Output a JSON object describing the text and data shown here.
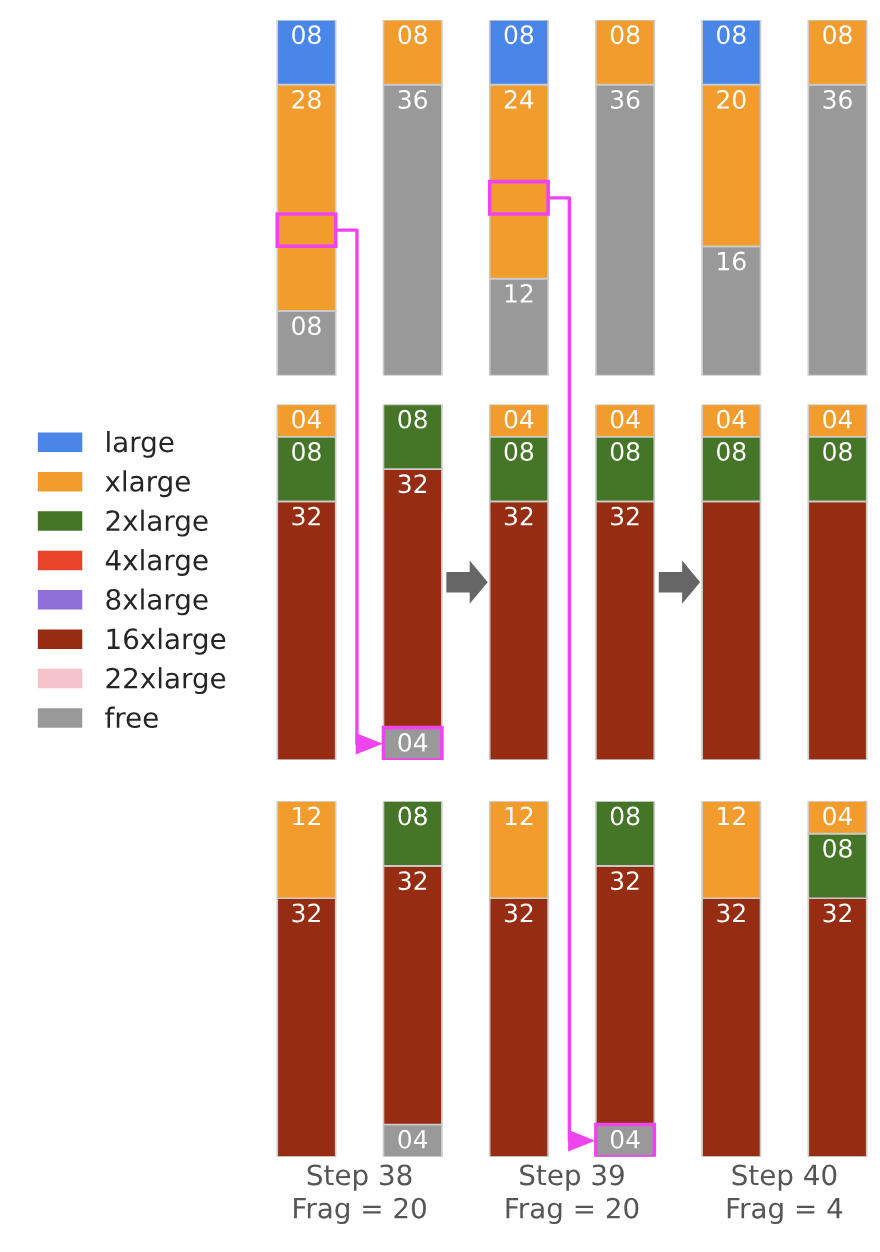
{
  "chart_data": [
    {
      "type": "bar",
      "stacked": true,
      "categories": [
        null,
        null,
        null,
        null,
        null,
        null
      ],
      "ylim": [
        0,
        44
      ],
      "tick_labels": false,
      "legend": false,
      "series": [
        {
          "color": "#999999",
          "values": [
            8,
            36,
            12,
            36,
            16,
            36
          ],
          "value_labels": [
            "08",
            "36",
            "12",
            "36",
            "16",
            "36"
          ]
        },
        {
          "color": "#f19c2c",
          "values": [
            28,
            8,
            24,
            8,
            20,
            8
          ],
          "value_labels": [
            "28",
            "08",
            "24",
            "08",
            "20",
            "08"
          ]
        },
        {
          "color": "#4a86e8",
          "values": [
            8,
            null,
            8,
            null,
            8,
            null
          ],
          "value_labels": [
            "08",
            null,
            "08",
            null,
            "08",
            null
          ]
        }
      ]
    },
    {
      "type": "bar",
      "stacked": true,
      "categories": [
        null,
        null,
        null,
        null,
        null,
        null
      ],
      "ylim": [
        0,
        44
      ],
      "tick_labels": false,
      "legend": "left",
      "series": [
        {
          "name": "free",
          "color": "#999999",
          "values": [
            null,
            4,
            null,
            null,
            null,
            null
          ],
          "value_labels": [
            null,
            "04",
            null,
            null,
            null,
            null
          ]
        },
        {
          "name": "22xlarge",
          "color": "#f4c2c8",
          "values": [
            null,
            null,
            null,
            null,
            null,
            null
          ]
        },
        {
          "name": "16xlarge",
          "color": "#962d12",
          "values": [
            32,
            32,
            32,
            32,
            32,
            32
          ],
          "value_labels": [
            "32",
            "32",
            "32",
            "32",
            null,
            null
          ]
        },
        {
          "name": "8xlarge",
          "color": "#8e6fd8",
          "values": [
            null,
            null,
            null,
            null,
            null,
            null
          ]
        },
        {
          "name": "4xlarge",
          "color": "#e8432b",
          "values": [
            null,
            null,
            null,
            null,
            null,
            null
          ]
        },
        {
          "name": "2xlarge",
          "color": "#457526",
          "values": [
            8,
            8,
            8,
            8,
            8,
            8
          ],
          "value_labels": [
            "08",
            "08",
            "08",
            "08",
            "08",
            "08"
          ]
        },
        {
          "name": "xlarge",
          "color": "#f19c2c",
          "values": [
            4,
            null,
            4,
            4,
            4,
            4
          ],
          "value_labels": [
            "04",
            null,
            "04",
            "04",
            "04",
            "04"
          ]
        },
        {
          "name": "large",
          "color": "#4a86e8",
          "values": [
            null,
            null,
            null,
            null,
            null,
            null
          ]
        }
      ]
    },
    {
      "type": "bar",
      "stacked": true,
      "categories": [
        null,
        null,
        null,
        null,
        null,
        null
      ],
      "ylim": [
        0,
        44
      ],
      "tick_labels": false,
      "legend": false,
      "annotations": [
        "Step 38\nFrag = 20",
        "Step 39\nFrag = 20",
        "Step 40\nFrag = 4"
      ],
      "series": [
        {
          "color": "#999999",
          "values": [
            null,
            4,
            null,
            4,
            null,
            null
          ],
          "value_labels": [
            null,
            "04",
            null,
            "04",
            null,
            null
          ]
        },
        {
          "color": "#962d12",
          "values": [
            32,
            32,
            32,
            32,
            32,
            32
          ],
          "value_labels": [
            "32",
            "32",
            "32",
            "32",
            "32",
            "32"
          ]
        },
        {
          "color": "#457526",
          "values": [
            null,
            8,
            null,
            8,
            null,
            8
          ],
          "value_labels": [
            null,
            "08",
            null,
            "08",
            null,
            "08"
          ]
        },
        {
          "color": "#f19c2c",
          "values": [
            12,
            null,
            12,
            null,
            12,
            4
          ],
          "value_labels": [
            "12",
            null,
            "12",
            null,
            "12",
            "04"
          ]
        }
      ]
    }
  ]
}
